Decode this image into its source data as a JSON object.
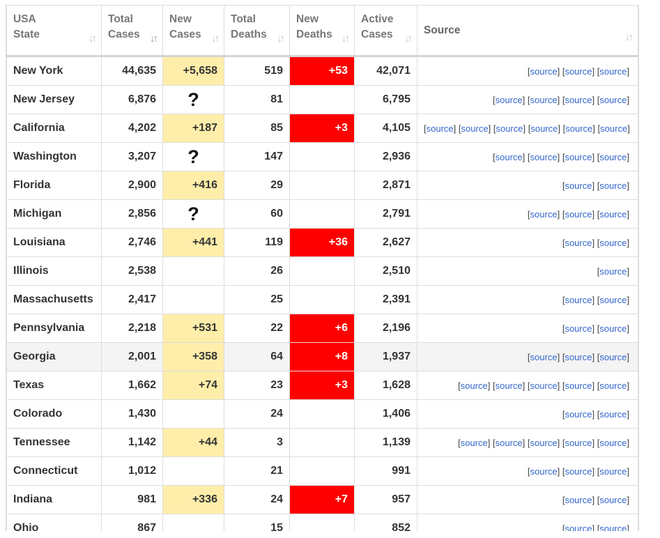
{
  "headers": [
    {
      "line1": "USA",
      "line2": "State"
    },
    {
      "line1": "Total",
      "line2": "Cases"
    },
    {
      "line1": "New",
      "line2": "Cases"
    },
    {
      "line1": "Total",
      "line2": "Deaths"
    },
    {
      "line1": "New",
      "line2": "Deaths"
    },
    {
      "line1": "Active",
      "line2": "Cases"
    },
    {
      "line1": "Source",
      "line2": ""
    }
  ],
  "sort_icon": "↓↑",
  "source_label": "source",
  "colors": {
    "new_cases_bg": "#ffeeaa",
    "new_deaths_bg": "#ff0000",
    "link": "#3366cc"
  },
  "rows": [
    {
      "state": "New York",
      "total_cases": "44,635",
      "new_cases": "+5,658",
      "total_deaths": "519",
      "new_deaths": "+53",
      "active_cases": "42,071",
      "sources": 3
    },
    {
      "state": "New Jersey",
      "total_cases": "6,876",
      "new_cases": "?",
      "total_deaths": "81",
      "new_deaths": "",
      "active_cases": "6,795",
      "sources": 4
    },
    {
      "state": "California",
      "total_cases": "4,202",
      "new_cases": "+187",
      "total_deaths": "85",
      "new_deaths": "+3",
      "active_cases": "4,105",
      "sources": 6
    },
    {
      "state": "Washington",
      "total_cases": "3,207",
      "new_cases": "?",
      "total_deaths": "147",
      "new_deaths": "",
      "active_cases": "2,936",
      "sources": 4
    },
    {
      "state": "Florida",
      "total_cases": "2,900",
      "new_cases": "+416",
      "total_deaths": "29",
      "new_deaths": "",
      "active_cases": "2,871",
      "sources": 2
    },
    {
      "state": "Michigan",
      "total_cases": "2,856",
      "new_cases": "?",
      "total_deaths": "60",
      "new_deaths": "",
      "active_cases": "2,791",
      "sources": 3
    },
    {
      "state": "Louisiana",
      "total_cases": "2,746",
      "new_cases": "+441",
      "total_deaths": "119",
      "new_deaths": "+36",
      "active_cases": "2,627",
      "sources": 2
    },
    {
      "state": "Illinois",
      "total_cases": "2,538",
      "new_cases": "",
      "total_deaths": "26",
      "new_deaths": "",
      "active_cases": "2,510",
      "sources": 1
    },
    {
      "state": "Massachusetts",
      "total_cases": "2,417",
      "new_cases": "",
      "total_deaths": "25",
      "new_deaths": "",
      "active_cases": "2,391",
      "sources": 2
    },
    {
      "state": "Pennsylvania",
      "total_cases": "2,218",
      "new_cases": "+531",
      "total_deaths": "22",
      "new_deaths": "+6",
      "active_cases": "2,196",
      "sources": 2
    },
    {
      "state": "Georgia",
      "total_cases": "2,001",
      "new_cases": "+358",
      "total_deaths": "64",
      "new_deaths": "+8",
      "active_cases": "1,937",
      "sources": 3,
      "highlighted": true
    },
    {
      "state": "Texas",
      "total_cases": "1,662",
      "new_cases": "+74",
      "total_deaths": "23",
      "new_deaths": "+3",
      "active_cases": "1,628",
      "sources": 5
    },
    {
      "state": "Colorado",
      "total_cases": "1,430",
      "new_cases": "",
      "total_deaths": "24",
      "new_deaths": "",
      "active_cases": "1,406",
      "sources": 2
    },
    {
      "state": "Tennessee",
      "total_cases": "1,142",
      "new_cases": "+44",
      "total_deaths": "3",
      "new_deaths": "",
      "active_cases": "1,139",
      "sources": 5
    },
    {
      "state": "Connecticut",
      "total_cases": "1,012",
      "new_cases": "",
      "total_deaths": "21",
      "new_deaths": "",
      "active_cases": "991",
      "sources": 3
    },
    {
      "state": "Indiana",
      "total_cases": "981",
      "new_cases": "+336",
      "total_deaths": "24",
      "new_deaths": "+7",
      "active_cases": "957",
      "sources": 2
    },
    {
      "state": "Ohio",
      "total_cases": "867",
      "new_cases": "",
      "total_deaths": "15",
      "new_deaths": "",
      "active_cases": "852",
      "sources": 2
    }
  ]
}
